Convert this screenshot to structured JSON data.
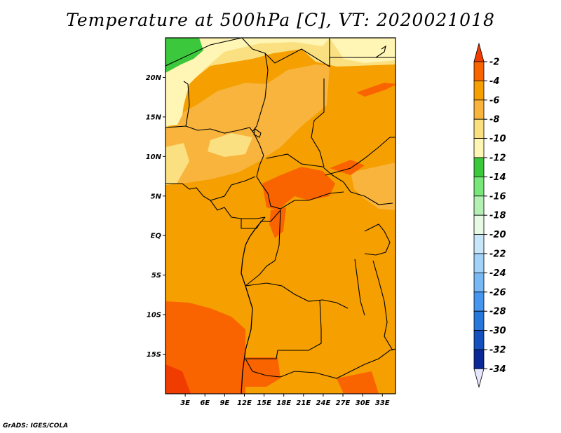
{
  "title": "Temperature at 500hPa [C], VT: 2020021018",
  "credit": "GrADS: IGES/COLA",
  "map": {
    "lat_labels": [
      "20N",
      "15N",
      "10N",
      "5N",
      "EQ",
      "5S",
      "10S",
      "15S"
    ],
    "lat_values": [
      20,
      15,
      10,
      5,
      0,
      -5,
      -10,
      -15
    ],
    "lon_labels": [
      "3E",
      "6E",
      "9E",
      "12E",
      "15E",
      "18E",
      "21E",
      "24E",
      "27E",
      "30E",
      "33E"
    ],
    "lon_values": [
      3,
      6,
      9,
      12,
      15,
      18,
      21,
      24,
      27,
      30,
      33
    ],
    "lon_range": [
      0,
      35
    ],
    "lat_range": [
      -20,
      25
    ]
  },
  "colorbar": {
    "labels": [
      "-2",
      "-4",
      "-6",
      "-8",
      "-10",
      "-12",
      "-14",
      "-16",
      "-18",
      "-20",
      "-22",
      "-24",
      "-26",
      "-28",
      "-30",
      "-32",
      "-34"
    ],
    "colors": [
      "#f03c00",
      "#fa6400",
      "#f5a000",
      "#f8b43c",
      "#fae080",
      "#fff5b4",
      "#3cc83c",
      "#78e678",
      "#b4f0b4",
      "#e6fae6",
      "#c8e6fa",
      "#a0d2fa",
      "#78b9f5",
      "#4696f0",
      "#2878dc",
      "#1450be",
      "#0a2896",
      "#000064"
    ],
    "top_color": "#f03c00",
    "bottom_color": "#e6e6ff"
  }
}
